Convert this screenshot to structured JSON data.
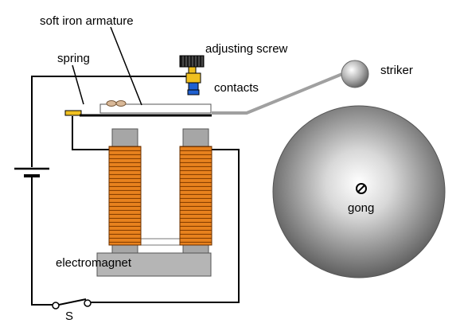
{
  "labels": {
    "armature": "soft iron armature",
    "spring": "spring",
    "screw": "adjusting screw",
    "contacts": "contacts",
    "striker": "striker",
    "gong": "gong",
    "electromagnet": "electromagnet",
    "switch": "S"
  },
  "colors": {
    "coil": "#e8821e",
    "core": "#a6a6a6",
    "screw_head": "#1a1a1a",
    "screw_body": "#f0c020",
    "screw_tip": "#2060d0",
    "spring": "#f0c020",
    "striker_arm": "#a0a0a0",
    "gong_rim": "#5f5f5f",
    "gong_center": "#ffffff"
  }
}
